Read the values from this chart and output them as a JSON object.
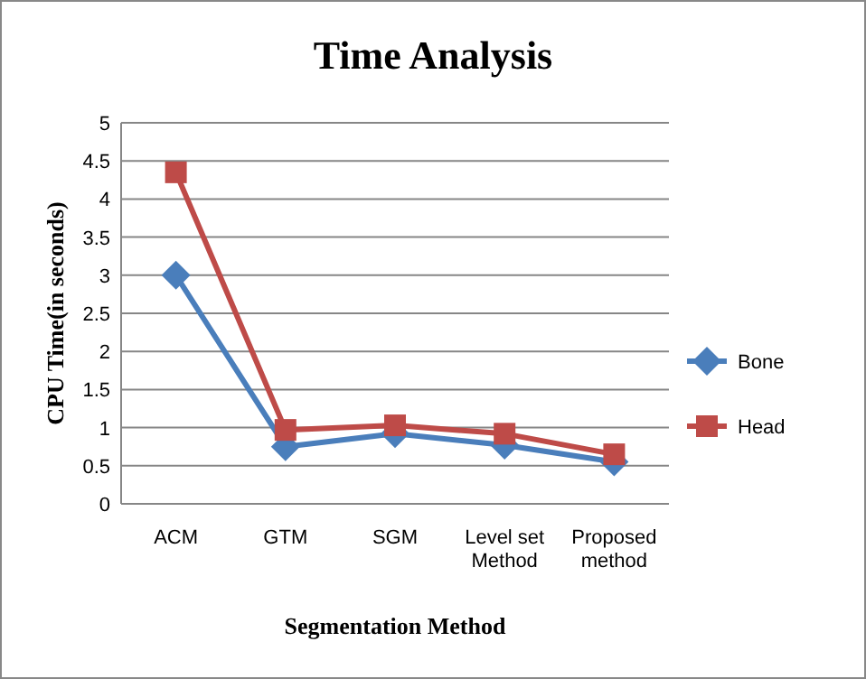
{
  "chart_data": {
    "type": "line",
    "title": "Time Analysis",
    "xlabel": "Segmentation Method",
    "ylabel": "CPU Time(in seconds)",
    "categories": [
      "ACM",
      "GTM",
      "SGM",
      "Level set Method",
      "Proposed method"
    ],
    "series": [
      {
        "name": "Bone",
        "color": "#4a7ebb",
        "values": [
          3.0,
          0.75,
          0.92,
          0.77,
          0.55
        ],
        "marker": "diamond"
      },
      {
        "name": "Head",
        "color": "#be4b48",
        "values": [
          4.35,
          0.97,
          1.03,
          0.92,
          0.65
        ],
        "marker": "square"
      }
    ],
    "ylim": [
      0,
      5
    ],
    "yticks": [
      0,
      0.5,
      1,
      1.5,
      2,
      2.5,
      3,
      3.5,
      4,
      4.5,
      5
    ],
    "grid": "y",
    "legend": "right",
    "line_style": "solid"
  }
}
